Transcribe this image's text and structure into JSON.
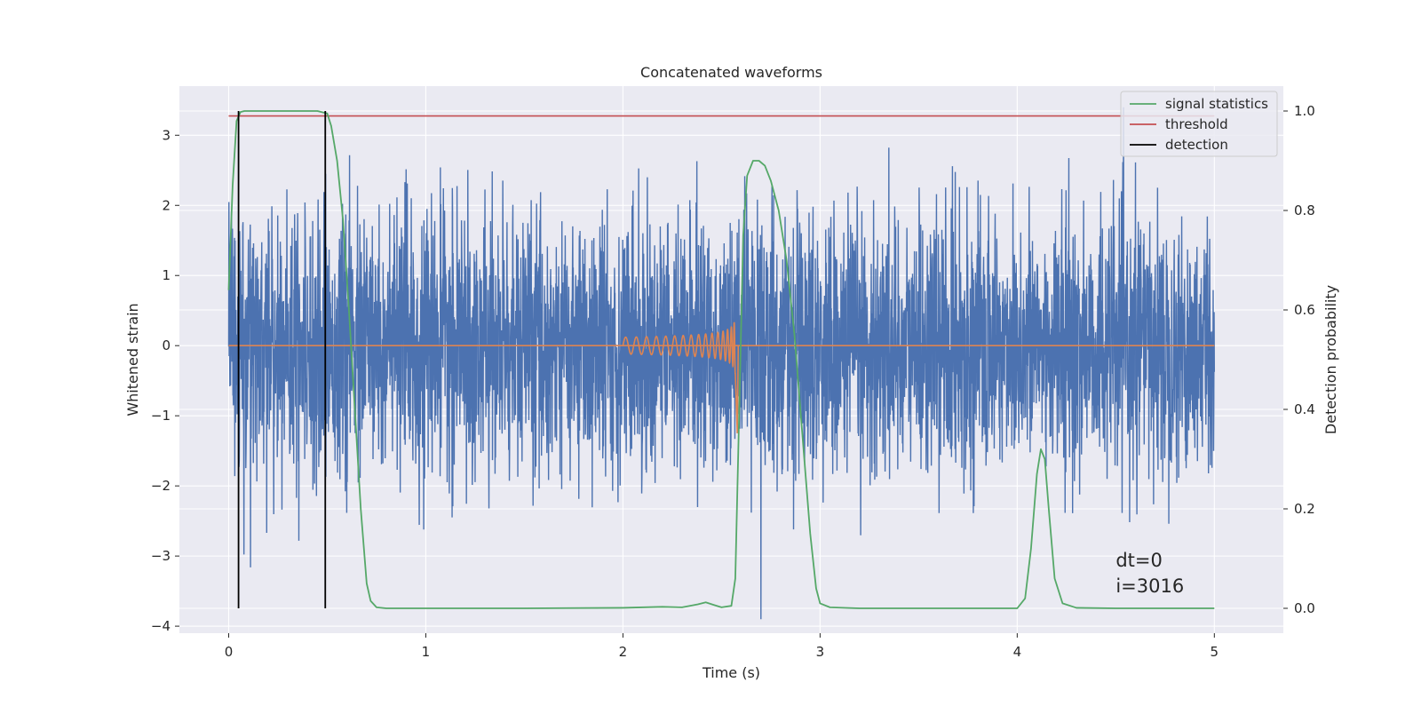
{
  "chart_data": {
    "type": "line",
    "title": "Concatenated waveforms",
    "xlabel": "Time (s)",
    "ylabel": "Whitened strain",
    "y2label": "Detection probability",
    "xlim": [
      -0.25,
      5.35
    ],
    "ylim": [
      -4.1,
      3.7
    ],
    "y2lim": [
      -0.05,
      1.05
    ],
    "xticks": [
      0,
      1,
      2,
      3,
      4,
      5
    ],
    "yticks": [
      -4,
      -3,
      -2,
      -1,
      0,
      1,
      2,
      3
    ],
    "y2ticks": [
      0.0,
      0.2,
      0.4,
      0.6,
      0.8,
      1.0
    ],
    "xtick_labels": [
      "0",
      "1",
      "2",
      "3",
      "4",
      "5"
    ],
    "ytick_labels": [
      "−4",
      "−3",
      "−2",
      "−1",
      "0",
      "1",
      "2",
      "3"
    ],
    "y2tick_labels": [
      "0.0",
      "0.2",
      "0.4",
      "0.6",
      "0.8",
      "1.0"
    ],
    "grid": true,
    "legend_position": "top-right",
    "legend": [
      "signal statistics",
      "threshold",
      "detection"
    ],
    "annotations": [
      "dt=0",
      "i=3016"
    ],
    "colors": {
      "background": "#eaeaf2",
      "grid": "#ffffff",
      "strain": "#4c72b0",
      "waveform": "#dd8452",
      "signal_statistics": "#55a868",
      "threshold": "#c44e52",
      "detection": "#000000"
    },
    "series": [
      {
        "name": "signal statistics",
        "axis": "right",
        "x": [
          0.0,
          0.02,
          0.04,
          0.06,
          0.08,
          0.1,
          0.15,
          0.2,
          0.3,
          0.4,
          0.45,
          0.5,
          0.52,
          0.55,
          0.58,
          0.61,
          0.64,
          0.67,
          0.7,
          0.72,
          0.75,
          0.8,
          1.0,
          1.5,
          2.0,
          2.2,
          2.3,
          2.38,
          2.42,
          2.46,
          2.5,
          2.55,
          2.57,
          2.59,
          2.61,
          2.63,
          2.66,
          2.69,
          2.72,
          2.75,
          2.79,
          2.83,
          2.87,
          2.91,
          2.95,
          2.98,
          3.0,
          3.05,
          3.2,
          3.5,
          4.0,
          4.04,
          4.07,
          4.1,
          4.12,
          4.14,
          4.16,
          4.19,
          4.23,
          4.3,
          4.5,
          5.0
        ],
        "values": [
          0.64,
          0.85,
          0.98,
          0.998,
          1.0,
          1.0,
          1.0,
          1.0,
          1.0,
          1.0,
          1.0,
          0.995,
          0.97,
          0.9,
          0.78,
          0.6,
          0.4,
          0.2,
          0.05,
          0.015,
          0.002,
          0.0,
          0.0,
          0.0,
          0.001,
          0.003,
          0.002,
          0.008,
          0.012,
          0.007,
          0.002,
          0.005,
          0.06,
          0.4,
          0.75,
          0.87,
          0.9,
          0.9,
          0.89,
          0.86,
          0.8,
          0.7,
          0.55,
          0.35,
          0.15,
          0.04,
          0.01,
          0.002,
          0.0,
          0.0,
          0.0,
          0.02,
          0.12,
          0.27,
          0.32,
          0.3,
          0.2,
          0.06,
          0.01,
          0.001,
          0.0,
          0.0
        ]
      },
      {
        "name": "threshold",
        "axis": "right",
        "x": [
          0.0,
          5.0
        ],
        "values": [
          0.99,
          0.99
        ]
      },
      {
        "name": "detection",
        "axis": "right",
        "x": [
          0.05,
          0.49
        ],
        "ymin": 0.0,
        "ymax": 1.0
      },
      {
        "name": "",
        "axis": "left",
        "description_free": true,
        "x_range": [
          0.0,
          5.0
        ],
        "amplitude_envelope": [
          -3.9,
          3.4
        ],
        "values_approx": "dense noise, typical peaks between -2.5 and 2.5"
      },
      {
        "name": "",
        "axis": "left",
        "x_range": [
          2.0,
          2.57
        ],
        "amplitude_start": 0.12,
        "amplitude_peak": 1.05,
        "zero_line_x": [
          0.0,
          5.0
        ]
      }
    ]
  }
}
